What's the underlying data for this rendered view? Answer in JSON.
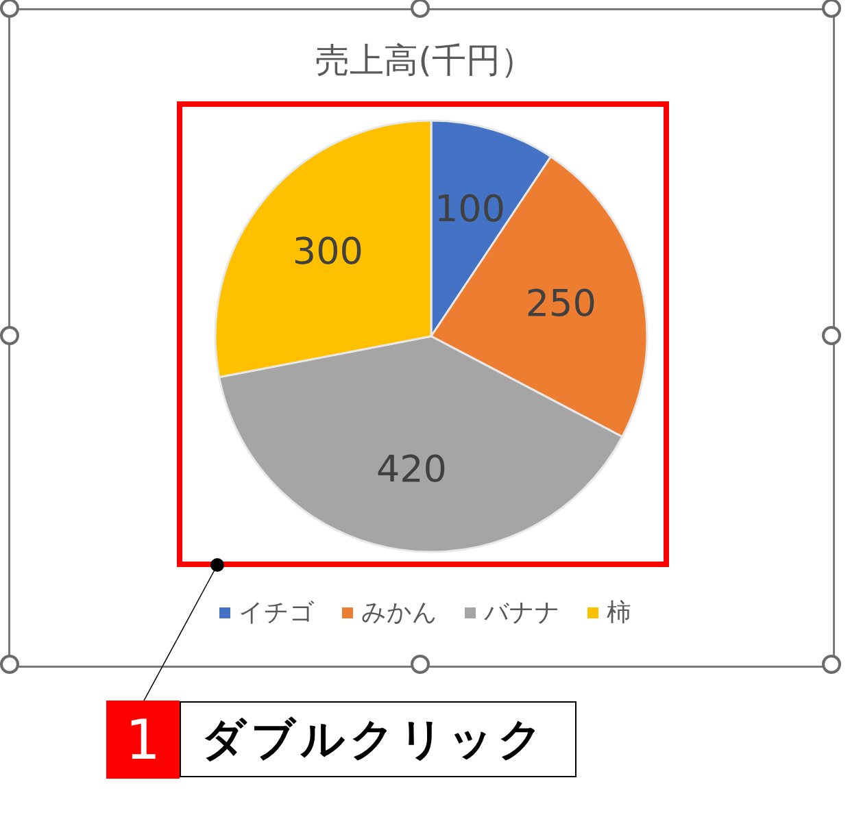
{
  "chart_data": {
    "type": "pie",
    "title": "売上高(千円）",
    "categories": [
      "イチゴ",
      "みかん",
      "バナナ",
      "柿"
    ],
    "values": [
      100,
      250,
      420,
      300
    ],
    "colors": [
      "#4472c4",
      "#ed7d31",
      "#a5a5a5",
      "#ffc000"
    ],
    "data_labels": true,
    "legend": "bottom",
    "annotations": [
      "1",
      "ダブルクリック"
    ]
  }
}
